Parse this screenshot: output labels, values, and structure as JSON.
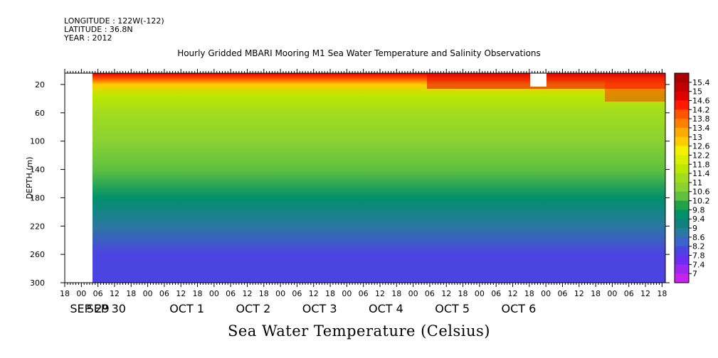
{
  "header": {
    "longitude": "LONGITUDE : 122W(-122)",
    "latitude": "LATITUDE : 36.8N",
    "year": "YEAR : 2012"
  },
  "chart_data": {
    "type": "heatmap",
    "title": "Hourly Gridded MBARI Mooring M1 Sea Water Temperature and Salinity Observations",
    "xlabel": "Sea Water Temperature (Celsius)",
    "ylabel": "DEPTH (m)",
    "y_ticks": [
      20,
      60,
      100,
      140,
      180,
      220,
      260,
      300
    ],
    "ylim": [
      300,
      4
    ],
    "y_inverted": true,
    "x_hour_ticks": [
      "18",
      "00",
      "06",
      "12",
      "18",
      "00",
      "06",
      "12",
      "18",
      "00",
      "06",
      "12",
      "18",
      "00",
      "06",
      "12",
      "18",
      "00",
      "06",
      "12",
      "18",
      "00",
      "06",
      "12",
      "18",
      "00",
      "06",
      "12",
      "18",
      "00",
      "06",
      "12",
      "18",
      "00",
      "06",
      "12",
      "18"
    ],
    "x_day_labels": [
      {
        "label": "SEP 29",
        "after_tick": 1
      },
      {
        "label": "SEP 30",
        "after_tick": 2
      },
      {
        "label": "OCT   1",
        "after_tick": 7
      },
      {
        "label": "OCT   2",
        "after_tick": 11
      },
      {
        "label": "OCT   3",
        "after_tick": 15
      },
      {
        "label": "OCT   4",
        "after_tick": 19
      },
      {
        "label": "OCT   5",
        "after_tick": 23
      },
      {
        "label": "OCT   6",
        "after_tick": 27
      }
    ],
    "depth_profile": [
      {
        "depth": 4,
        "temp": 14.6
      },
      {
        "depth": 12,
        "temp": 14.0
      },
      {
        "depth": 20,
        "temp": 12.6
      },
      {
        "depth": 35,
        "temp": 11.6
      },
      {
        "depth": 60,
        "temp": 11.0
      },
      {
        "depth": 100,
        "temp": 10.8
      },
      {
        "depth": 140,
        "temp": 10.2
      },
      {
        "depth": 180,
        "temp": 9.4
      },
      {
        "depth": 220,
        "temp": 8.6
      },
      {
        "depth": 260,
        "temp": 8.1
      },
      {
        "depth": 300,
        "temp": 7.9
      }
    ],
    "colorbar": {
      "labels": [
        "15.4",
        "15",
        "14.6",
        "14.2",
        "13.8",
        "13.4",
        "13",
        "12.6",
        "12.2",
        "11.8",
        "11.4",
        "11",
        "10.6",
        "10.2",
        "9.8",
        "9.4",
        "9",
        "8.6",
        "8.2",
        "7.8",
        "7.4",
        "7"
      ],
      "colors": [
        "#a80000",
        "#c00000",
        "#e00000",
        "#ff1a00",
        "#ff5500",
        "#ff8000",
        "#ffaa00",
        "#ffcc00",
        "#f5f000",
        "#d8f000",
        "#bce800",
        "#a2dc1e",
        "#8ad232",
        "#60c040",
        "#22a248",
        "#00906a",
        "#10827e",
        "#2a78a0",
        "#3c62cc",
        "#4c44e0",
        "#6a2ef0",
        "#9a28f0",
        "#c822f0"
      ]
    }
  }
}
